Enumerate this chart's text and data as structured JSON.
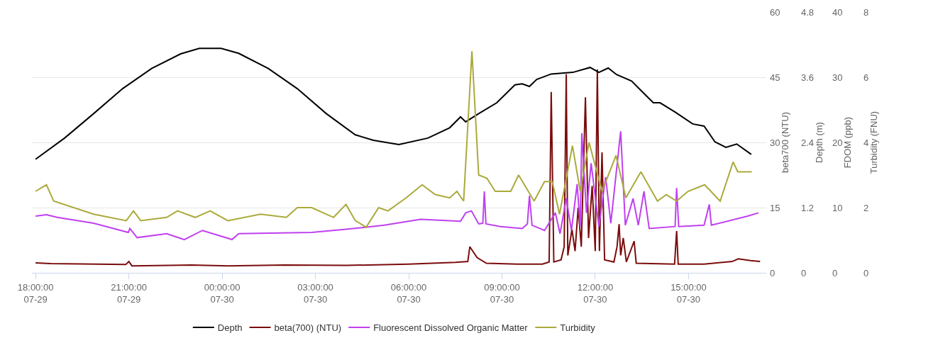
{
  "chart_data": [
    {
      "type": "line",
      "xlim": [
        "--07-29T17:53",
        "--07-30T17:30"
      ],
      "xticks": [
        {
          "value": "--07-29T18:00",
          "label": "18:00:00\n07-29"
        },
        {
          "value": "--07-29T21:00",
          "label": "21:00:00\n07-29"
        },
        {
          "value": "--07-30T00:00",
          "label": "00:00:00\n07-30"
        },
        {
          "value": "--07-30T03:00",
          "label": "03:00:00\n07-30"
        },
        {
          "value": "--07-30T06:00",
          "label": "06:00:00\n07-30"
        },
        {
          "value": "--07-30T09:00",
          "label": "09:00:00\n07-30"
        },
        {
          "value": "--07-30T12:00",
          "label": "12:00:00\n07-30"
        },
        {
          "value": "--07-30T15:00",
          "label": "15:00:00\n07-30"
        }
      ],
      "ylabel": "beta700 (NTU)",
      "ylim": [
        0,
        60
      ],
      "yticks": [
        0,
        15,
        30,
        45,
        60
      ],
      "y2label": "Depth (m)",
      "y2lim": [
        0,
        4.8
      ],
      "y2ticks": [
        0,
        1.2,
        2.4,
        3.6,
        4.8
      ],
      "y3label": "FDOM (ppb)",
      "y3lim": [
        0,
        40
      ],
      "y3ticks": [
        0,
        10,
        20,
        30,
        40
      ],
      "grid": "y",
      "legend": "bottom",
      "marker": "none",
      "line_style": "solid",
      "series": [
        {
          "name": "Depth",
          "color": "#000000",
          "axis": "y2",
          "x": [
            "--07-29T18:00",
            "--07-29T18:56",
            "--07-29T19:52",
            "--07-29T20:48",
            "--07-29T21:44",
            "--07-29T22:40",
            "--07-29T23:16",
            "--07-29T23:58",
            "--07-30T00:32",
            "--07-30T01:29",
            "--07-30T02:25",
            "--07-30T03:21",
            "--07-30T04:17",
            "--07-30T04:52",
            "--07-30T05:41",
            "--07-30T06:37",
            "--07-30T07:19",
            "--07-30T07:40",
            "--07-30T07:50",
            "--07-30T08:15",
            "--07-30T08:50",
            "--07-30T09:25",
            "--07-30T09:39",
            "--07-30T09:53",
            "--07-30T10:07",
            "--07-30T10:35",
            "--07-30T11:17",
            "--07-30T11:50",
            "--07-30T12:07",
            "--07-30T12:25",
            "--07-30T12:41",
            "--07-30T13:10",
            "--07-30T13:31",
            "--07-30T13:52",
            "--07-30T14:05",
            "--07-30T14:34",
            "--07-30T15:08",
            "--07-30T15:30",
            "--07-30T15:51",
            "--07-30T16:12",
            "--07-30T16:33",
            "--07-30T17:01"
          ],
          "values": [
            2.09,
            2.48,
            2.93,
            3.39,
            3.76,
            4.03,
            4.13,
            4.13,
            4.04,
            3.76,
            3.39,
            2.93,
            2.54,
            2.44,
            2.36,
            2.48,
            2.67,
            2.87,
            2.78,
            2.93,
            3.13,
            3.46,
            3.48,
            3.43,
            3.56,
            3.66,
            3.69,
            3.78,
            3.69,
            3.77,
            3.65,
            3.53,
            3.33,
            3.13,
            3.13,
            2.96,
            2.74,
            2.7,
            2.41,
            2.31,
            2.37,
            2.18
          ]
        },
        {
          "name": "beta(700) (NTU)",
          "color": "#7b0c0c",
          "axis": "y",
          "x": [
            "--07-29T18:00",
            "--07-29T18:30",
            "--07-29T20:54",
            "--07-29T21:00",
            "--07-29T21:06",
            "--07-29T23:00",
            "--07-30T00:12",
            "--07-30T02:00",
            "--07-30T04:00",
            "--07-30T06:00",
            "--07-30T07:30",
            "--07-30T07:54",
            "--07-30T07:58",
            "--07-30T08:12",
            "--07-30T08:30",
            "--07-30T09:30",
            "--07-30T10:18",
            "--07-30T10:31",
            "--07-30T10:35",
            "--07-30T10:40",
            "--07-30T10:54",
            "--07-30T11:00",
            "--07-30T11:04",
            "--07-30T11:07",
            "--07-30T11:15",
            "--07-30T11:21",
            "--07-30T11:27",
            "--07-30T11:33",
            "--07-30T11:41",
            "--07-30T11:47",
            "--07-30T11:54",
            "--07-30T12:00",
            "--07-30T12:04",
            "--07-30T12:08",
            "--07-30T12:13",
            "--07-30T12:18",
            "--07-30T12:36",
            "--07-30T12:42",
            "--07-30T12:46",
            "--07-30T12:49",
            "--07-30T12:54",
            "--07-30T13:00",
            "--07-30T13:15",
            "--07-30T13:19",
            "--07-30T14:33",
            "--07-30T14:37",
            "--07-30T14:40",
            "--07-30T15:30",
            "--07-30T16:24",
            "--07-30T16:36",
            "--07-30T17:00",
            "--07-30T17:18"
          ],
          "values": [
            2.3,
            2.1,
            1.9,
            2.6,
            1.6,
            1.8,
            1.6,
            1.8,
            1.7,
            2.0,
            2.4,
            2.6,
            6.0,
            3.5,
            2.2,
            2.0,
            2.0,
            2.5,
            41.6,
            2.5,
            3.0,
            6.0,
            45.7,
            4.0,
            10.0,
            5.0,
            15.0,
            6.0,
            40.4,
            8.0,
            20.0,
            5.0,
            46.8,
            5.0,
            27.7,
            3.0,
            2.5,
            6.0,
            11.2,
            4.0,
            8.0,
            2.5,
            7.3,
            2.2,
            2.0,
            9.6,
            2.0,
            2.0,
            2.6,
            3.2,
            2.8,
            2.6
          ]
        },
        {
          "name": "Fluorescent Dissolved Organic Matter",
          "color": "#c040f0",
          "axis": "y3",
          "x": [
            "--07-29T18:00",
            "--07-29T18:21",
            "--07-29T18:42",
            "--07-29T19:52",
            "--07-29T20:59",
            "--07-29T21:02",
            "--07-29T21:16",
            "--07-29T22:13",
            "--07-29T22:47",
            "--07-29T23:22",
            "--07-30T00:19",
            "--07-30T00:32",
            "--07-30T02:53",
            "--07-30T04:03",
            "--07-30T05:13",
            "--07-30T06:23",
            "--07-30T07:40",
            "--07-30T07:50",
            "--07-30T08:01",
            "--07-30T08:15",
            "--07-30T08:23",
            "--07-30T08:26",
            "--07-30T08:29",
            "--07-30T08:57",
            "--07-30T09:39",
            "--07-30T09:49",
            "--07-30T09:53",
            "--07-30T09:58",
            "--07-30T10:22",
            "--07-30T10:43",
            "--07-30T10:52",
            "--07-30T11:04",
            "--07-30T11:14",
            "--07-30T11:25",
            "--07-30T11:31",
            "--07-30T11:34",
            "--07-30T11:43",
            "--07-30T11:52",
            "--07-30T12:07",
            "--07-30T12:20",
            "--07-30T12:30",
            "--07-30T12:49",
            "--07-30T12:58",
            "--07-30T13:13",
            "--07-30T13:23",
            "--07-30T13:34",
            "--07-30T13:44",
            "--07-30T14:34",
            "--07-30T14:37",
            "--07-30T14:41",
            "--07-30T15:30",
            "--07-30T15:40",
            "--07-30T15:44",
            "--07-30T16:54",
            "--07-30T17:15"
          ],
          "values": [
            8.7,
            8.9,
            8.5,
            7.6,
            6.2,
            6.8,
            5.4,
            6.0,
            5.1,
            6.5,
            5.1,
            6.0,
            6.2,
            6.7,
            7.3,
            8.2,
            7.9,
            9.2,
            9.5,
            7.5,
            7.6,
            12.5,
            7.5,
            7.1,
            6.8,
            7.5,
            11.8,
            7.3,
            6.5,
            9.2,
            6.0,
            11.4,
            6.5,
            13.6,
            7.1,
            21.4,
            9.2,
            16.8,
            7.1,
            14.7,
            7.6,
            21.7,
            7.3,
            11.4,
            7.3,
            12.5,
            6.8,
            7.1,
            13.0,
            7.1,
            7.3,
            10.5,
            7.3,
            8.7,
            9.2
          ]
        }
      ]
    },
    {
      "type": "line",
      "tick_labels": "y",
      "xlim": [
        "--07-29T17:53",
        "--07-30T17:30"
      ],
      "ylabel": "Turbidity (FNU)",
      "ylim": [
        0,
        8
      ],
      "yticks": [
        0,
        2,
        4,
        6,
        8
      ],
      "legend": "bottom",
      "marker": "none",
      "line_style": "solid",
      "series": [
        {
          "name": "Turbidity",
          "color": "#aaaa3c",
          "axis": "y",
          "x": [
            "--07-29T18:00",
            "--07-29T18:21",
            "--07-29T18:35",
            "--07-29T19:52",
            "--07-29T20:55",
            "--07-29T21:09",
            "--07-29T21:23",
            "--07-29T22:13",
            "--07-29T22:34",
            "--07-29T23:08",
            "--07-29T23:37",
            "--07-30T00:11",
            "--07-30T01:14",
            "--07-30T02:04",
            "--07-30T02:25",
            "--07-30T02:53",
            "--07-30T03:35",
            "--07-30T03:59",
            "--07-30T04:17",
            "--07-30T04:38",
            "--07-30T05:02",
            "--07-30T05:20",
            "--07-30T05:55",
            "--07-30T06:26",
            "--07-30T06:51",
            "--07-30T07:19",
            "--07-30T07:33",
            "--07-30T07:46",
            "--07-30T08:02",
            "--07-30T08:15",
            "--07-30T08:31",
            "--07-30T08:47",
            "--07-30T09:17",
            "--07-30T09:32",
            "--07-30T10:02",
            "--07-30T10:22",
            "--07-30T10:37",
            "--07-30T10:51",
            "--07-30T11:16",
            "--07-30T11:31",
            "--07-30T11:48",
            "--07-30T12:13",
            "--07-30T12:40",
            "--07-30T12:59",
            "--07-30T13:28",
            "--07-30T14:00",
            "--07-30T14:17",
            "--07-30T14:37",
            "--07-30T14:59",
            "--07-30T15:31",
            "--07-30T16:01",
            "--07-30T16:26",
            "--07-30T16:35",
            "--07-30T17:02"
          ],
          "values": [
            2.5,
            2.7,
            2.2,
            1.8,
            1.6,
            1.9,
            1.6,
            1.7,
            1.9,
            1.7,
            1.9,
            1.6,
            1.8,
            1.7,
            2.0,
            2.0,
            1.7,
            2.1,
            1.6,
            1.4,
            2.0,
            1.9,
            2.3,
            2.7,
            2.4,
            2.3,
            2.5,
            2.2,
            6.8,
            3.0,
            2.9,
            2.5,
            2.5,
            3.0,
            2.2,
            2.8,
            2.8,
            1.8,
            3.9,
            2.5,
            4.0,
            2.5,
            3.6,
            2.3,
            3.1,
            2.2,
            2.4,
            2.2,
            2.5,
            2.7,
            2.2,
            3.4,
            3.1,
            3.1
          ]
        }
      ]
    }
  ]
}
